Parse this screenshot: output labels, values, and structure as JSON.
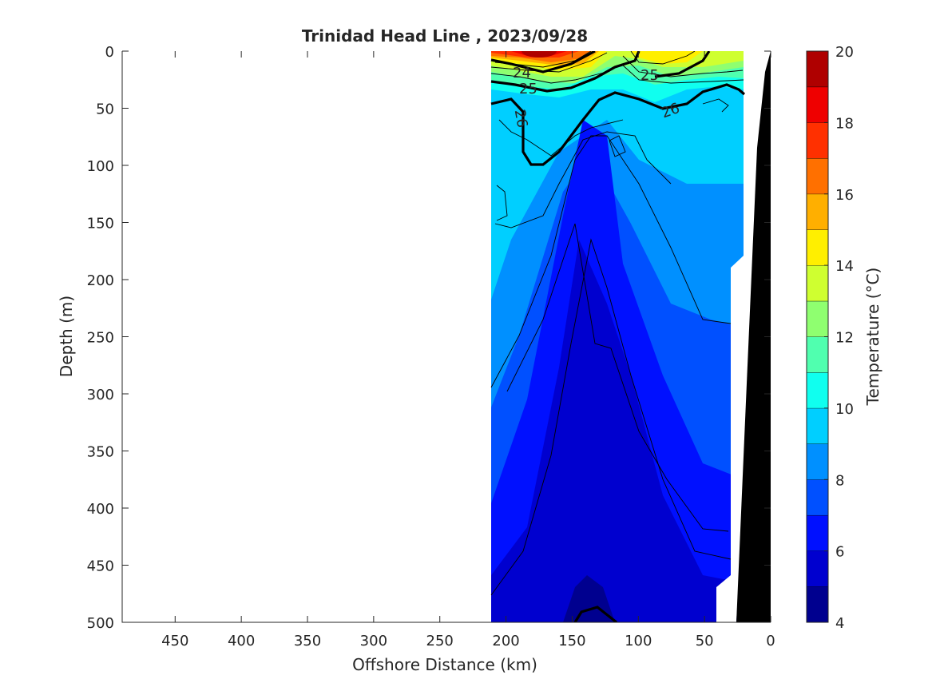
{
  "chart_data": {
    "type": "heatmap",
    "subtype": "filled-contour-section",
    "title": "Trinidad Head Line , 2023/09/28",
    "xlabel": "Offshore Distance (km)",
    "ylabel": "Depth (m)",
    "colorbar_label": "Temperature (°C)",
    "x_direction": "reversed",
    "y_direction": "reversed",
    "xlim": [
      490,
      0
    ],
    "ylim": [
      0,
      500
    ],
    "x_ticks": [
      450,
      400,
      350,
      300,
      250,
      200,
      150,
      100,
      50,
      0
    ],
    "y_ticks": [
      0,
      50,
      100,
      150,
      200,
      250,
      300,
      350,
      400,
      450,
      500
    ],
    "colorbar_ticks": [
      4,
      6,
      8,
      10,
      12,
      14,
      16,
      18,
      20
    ],
    "colorbar_levels": [
      4,
      5,
      6,
      7,
      8,
      9,
      10,
      11,
      12,
      13,
      14,
      15,
      16,
      17,
      18,
      19,
      20
    ],
    "colormap": [
      "#00008f",
      "#0000cf",
      "#0010ff",
      "#0050ff",
      "#0090ff",
      "#00cfff",
      "#10ffef",
      "#50ffaf",
      "#8fff70",
      "#cfff30",
      "#ffef00",
      "#ffaf00",
      "#ff7000",
      "#ff3000",
      "#ef0000",
      "#af0000"
    ],
    "data_extent_km": [
      210,
      20
    ],
    "contour_labels": [
      "24",
      "25",
      "25",
      "26",
      "26"
    ],
    "land_color": "#000000",
    "grid": false
  }
}
